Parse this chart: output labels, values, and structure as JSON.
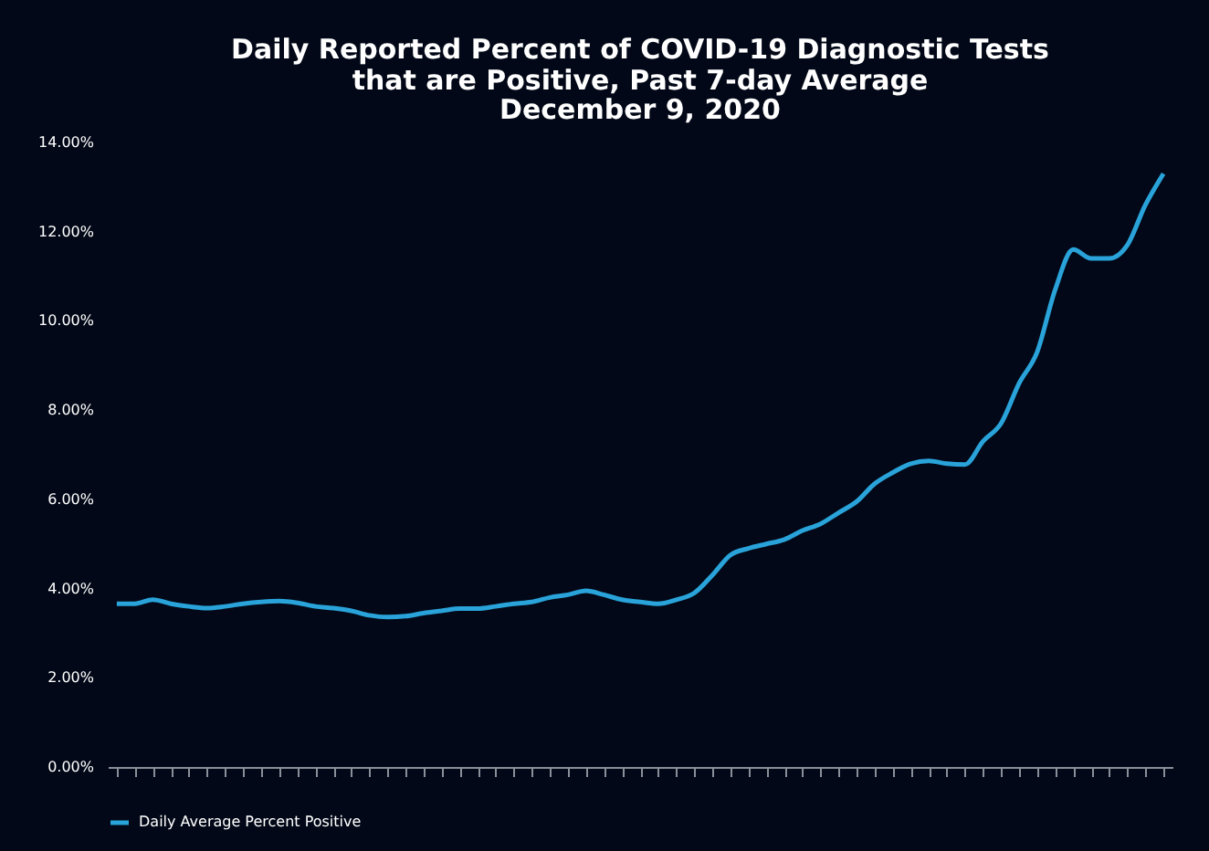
{
  "chart_data": {
    "type": "line",
    "title": "Daily Reported Percent of COVID-19 Diagnostic Tests that are Positive, Past 7-day Average",
    "subtitle": "December 9, 2020",
    "categories": [
      null,
      null,
      null,
      null,
      null,
      null,
      null,
      null,
      null,
      null,
      null,
      null,
      null,
      null,
      null,
      null,
      null,
      null,
      null,
      null,
      null,
      null,
      null,
      null,
      null,
      null,
      null,
      null,
      null,
      null,
      null,
      null,
      null,
      null,
      null,
      null,
      null,
      null,
      null,
      null,
      null,
      null,
      null,
      null,
      null,
      null,
      null,
      null,
      null,
      null,
      null,
      null,
      null,
      null,
      null,
      null,
      null,
      null,
      null
    ],
    "series": [
      {
        "name": "Daily Average Percent Positive",
        "color": "#29a3d9",
        "values": [
          3.66,
          3.66,
          3.75,
          3.66,
          3.6,
          3.56,
          3.6,
          3.66,
          3.7,
          3.72,
          3.68,
          3.6,
          3.56,
          3.5,
          3.4,
          3.36,
          3.38,
          3.45,
          3.5,
          3.55,
          3.55,
          3.6,
          3.66,
          3.7,
          3.8,
          3.86,
          3.95,
          3.86,
          3.75,
          3.7,
          3.66,
          3.75,
          3.9,
          4.3,
          4.75,
          4.9,
          5.0,
          5.1,
          5.3,
          5.45,
          5.7,
          5.95,
          6.35,
          6.6,
          6.8,
          6.86,
          6.8,
          6.78,
          7.3,
          7.7,
          8.6,
          9.3,
          10.7,
          11.6,
          11.4,
          11.4,
          11.7,
          12.6,
          13.3
        ]
      }
    ],
    "ylim": [
      0,
      14
    ],
    "yticks": [
      {
        "value": 0,
        "label": "0.00%"
      },
      {
        "value": 2,
        "label": "2.00%"
      },
      {
        "value": 4,
        "label": "4.00%"
      },
      {
        "value": 6,
        "label": "6.00%"
      },
      {
        "value": 8,
        "label": "8.00%"
      },
      {
        "value": 10,
        "label": "10.00%"
      },
      {
        "value": 12,
        "label": "12.00%"
      },
      {
        "value": 14,
        "label": "14.00%"
      }
    ],
    "tick_labels": "y",
    "legend": "bottom",
    "grid": false,
    "marker": "none",
    "line_style": "solid"
  }
}
